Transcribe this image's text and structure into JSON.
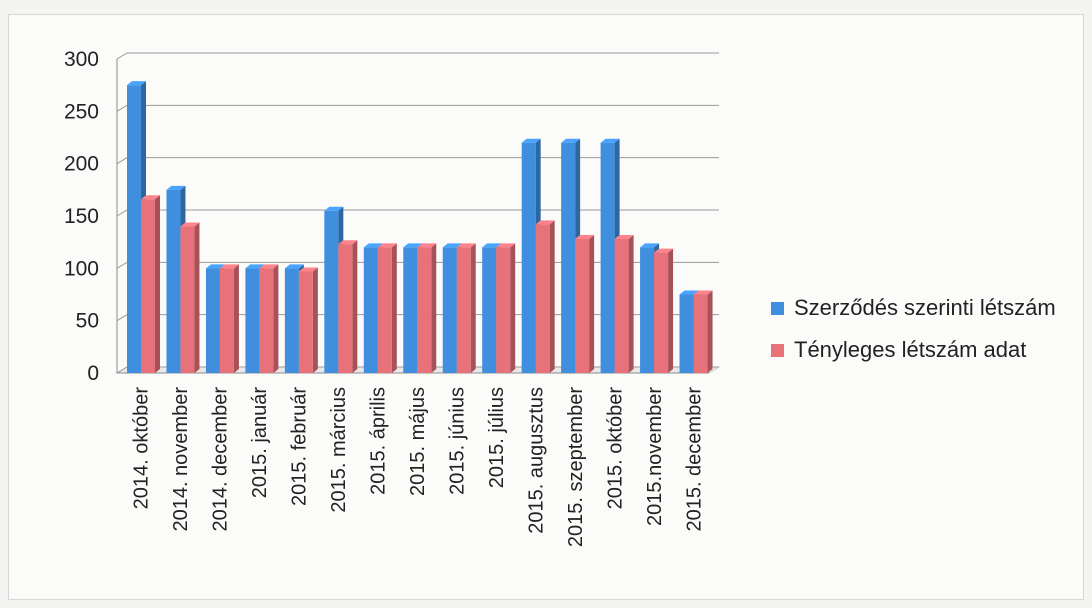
{
  "chart_data": {
    "type": "bar",
    "categories": [
      "2014. október",
      "2014. november",
      "2014. december",
      "2015. január",
      "2015. február",
      "2015. március",
      "2015. április",
      "2015. május",
      "2015. június",
      "2015. július",
      "2015. augusztus",
      "2015. szeptember",
      "2015. október",
      "2015.november",
      "2015. december"
    ],
    "series": [
      {
        "name": "Szerződés szerinti létszám",
        "color": "#3f8fde",
        "values": [
          275,
          175,
          100,
          100,
          100,
          155,
          120,
          120,
          120,
          120,
          220,
          220,
          220,
          120,
          75
        ]
      },
      {
        "name": "Tényleges létszám adat",
        "color": "#e8727a",
        "values": [
          166,
          140,
          100,
          100,
          97,
          123,
          120,
          120,
          120,
          120,
          142,
          128,
          128,
          115,
          75
        ]
      }
    ],
    "ylim": [
      0,
      300
    ],
    "yticks": [
      0,
      50,
      100,
      150,
      200,
      250,
      300
    ],
    "grid": true,
    "legend_position": "right"
  }
}
